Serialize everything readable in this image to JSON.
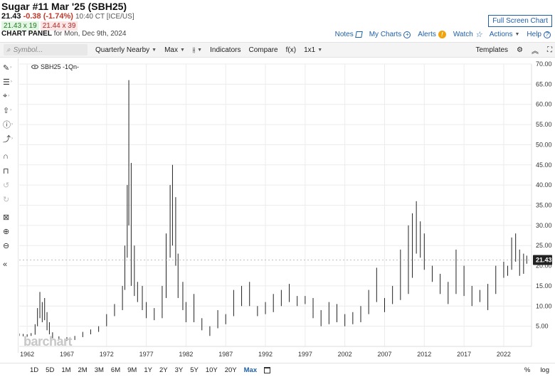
{
  "header": {
    "title": "Sugar #11 Mar '25 (SBH25)",
    "last": "21.43",
    "change": "-0.38 (-1.74%)",
    "time": "10:40 CT [ICE/US]",
    "bid": "21.43 x 19",
    "ask": "21.44 x 39",
    "panel_label": "CHART PANEL",
    "panel_date": "for Mon, Dec 9th, 2024",
    "fullscreen": "Full Screen Chart"
  },
  "links": {
    "notes": "Notes",
    "mycharts": "My Charts",
    "alerts": "Alerts",
    "watch": "Watch",
    "actions": "Actions",
    "help": "Help"
  },
  "toolbar": {
    "symbol_placeholder": "Symbol...",
    "aggregation": "Quarterly Nearby",
    "range": "Max",
    "indicators": "Indicators",
    "compare": "Compare",
    "fx": "f(x)",
    "layout": "1x1",
    "templates": "Templates"
  },
  "left_tools": [
    "pencil-icon",
    "lines-icon",
    "crosshair-icon",
    "arrow-up-icon",
    "info-icon",
    "path-icon",
    "magnet-icon",
    "lock-icon",
    "undo-icon",
    "redo-icon",
    "trash-icon",
    "zoom-in-icon",
    "zoom-out-icon",
    "collapse-icon"
  ],
  "legend": {
    "label": "SBH25 -1Qn-"
  },
  "watermark": "barchart",
  "bottom": {
    "periods": [
      "1D",
      "5D",
      "1M",
      "2M",
      "3M",
      "6M",
      "9M",
      "1Y",
      "2Y",
      "3Y",
      "5Y",
      "10Y",
      "20Y",
      "Max"
    ],
    "active": "Max",
    "percent": "%",
    "log": "log"
  },
  "chart_data": {
    "type": "ohlc",
    "symbol": "SBH25",
    "x_ticks": [
      "1962",
      "1967",
      "1972",
      "1977",
      "1982",
      "1987",
      "1992",
      "1997",
      "2002",
      "2007",
      "2012",
      "2017",
      "2022"
    ],
    "y_ticks": [
      "5.00",
      "10.00",
      "15.00",
      "20.00",
      "25.00",
      "30.00",
      "35.00",
      "40.00",
      "45.00",
      "50.00",
      "55.00",
      "60.00",
      "65.00",
      "70.00"
    ],
    "ylim": [
      0,
      70
    ],
    "xlim": [
      1961,
      2025.5
    ],
    "last_price": 21.43,
    "last_price_label": "21.43",
    "grid": true,
    "bars": [
      {
        "t": 1961.0,
        "h": 3.2,
        "l": 2.6
      },
      {
        "t": 1961.5,
        "h": 3.1,
        "l": 2.5
      },
      {
        "t": 1962.0,
        "h": 3.0,
        "l": 2.4
      },
      {
        "t": 1962.5,
        "h": 3.3,
        "l": 2.6
      },
      {
        "t": 1963.0,
        "h": 5.5,
        "l": 2.9
      },
      {
        "t": 1963.3,
        "h": 9.5,
        "l": 5.0
      },
      {
        "t": 1963.6,
        "h": 13.5,
        "l": 7.0
      },
      {
        "t": 1963.9,
        "h": 11.0,
        "l": 6.0
      },
      {
        "t": 1964.2,
        "h": 12.0,
        "l": 6.5
      },
      {
        "t": 1964.5,
        "h": 8.5,
        "l": 4.0
      },
      {
        "t": 1964.8,
        "h": 6.0,
        "l": 3.0
      },
      {
        "t": 1965.2,
        "h": 3.5,
        "l": 2.0
      },
      {
        "t": 1966.0,
        "h": 2.5,
        "l": 1.6
      },
      {
        "t": 1967.0,
        "h": 2.3,
        "l": 1.4
      },
      {
        "t": 1968.0,
        "h": 2.6,
        "l": 1.6
      },
      {
        "t": 1969.0,
        "h": 3.6,
        "l": 2.3
      },
      {
        "t": 1970.0,
        "h": 4.2,
        "l": 3.0
      },
      {
        "t": 1971.0,
        "h": 5.0,
        "l": 3.6
      },
      {
        "t": 1972.0,
        "h": 8.0,
        "l": 5.0
      },
      {
        "t": 1973.0,
        "h": 10.5,
        "l": 7.5
      },
      {
        "t": 1974.0,
        "h": 15.0,
        "l": 9.0
      },
      {
        "t": 1974.3,
        "h": 25.0,
        "l": 14.0
      },
      {
        "t": 1974.6,
        "h": 40.0,
        "l": 22.0
      },
      {
        "t": 1974.8,
        "h": 66.0,
        "l": 30.0
      },
      {
        "t": 1975.1,
        "h": 45.5,
        "l": 15.0
      },
      {
        "t": 1975.5,
        "h": 25.0,
        "l": 12.5
      },
      {
        "t": 1975.9,
        "h": 16.0,
        "l": 11.0
      },
      {
        "t": 1976.5,
        "h": 15.0,
        "l": 9.0
      },
      {
        "t": 1977.0,
        "h": 11.0,
        "l": 7.0
      },
      {
        "t": 1978.0,
        "h": 9.5,
        "l": 6.5
      },
      {
        "t": 1979.0,
        "h": 15.0,
        "l": 7.0
      },
      {
        "t": 1979.5,
        "h": 28.0,
        "l": 12.0
      },
      {
        "t": 1980.0,
        "h": 40.0,
        "l": 22.0
      },
      {
        "t": 1980.3,
        "h": 45.0,
        "l": 25.0
      },
      {
        "t": 1980.7,
        "h": 37.0,
        "l": 20.0
      },
      {
        "t": 1981.0,
        "h": 23.0,
        "l": 12.0
      },
      {
        "t": 1981.6,
        "h": 16.0,
        "l": 9.0
      },
      {
        "t": 1982.0,
        "h": 11.0,
        "l": 6.0
      },
      {
        "t": 1983.0,
        "h": 13.0,
        "l": 6.0
      },
      {
        "t": 1984.0,
        "h": 7.0,
        "l": 4.0
      },
      {
        "t": 1985.0,
        "h": 5.0,
        "l": 2.6
      },
      {
        "t": 1986.0,
        "h": 9.0,
        "l": 4.5
      },
      {
        "t": 1987.0,
        "h": 8.0,
        "l": 5.5
      },
      {
        "t": 1988.0,
        "h": 14.0,
        "l": 7.5
      },
      {
        "t": 1989.0,
        "h": 15.0,
        "l": 10.0
      },
      {
        "t": 1990.0,
        "h": 16.0,
        "l": 10.0
      },
      {
        "t": 1991.0,
        "h": 10.0,
        "l": 7.5
      },
      {
        "t": 1992.0,
        "h": 11.0,
        "l": 8.0
      },
      {
        "t": 1993.0,
        "h": 13.0,
        "l": 8.5
      },
      {
        "t": 1994.0,
        "h": 14.0,
        "l": 10.0
      },
      {
        "t": 1995.0,
        "h": 15.5,
        "l": 11.0
      },
      {
        "t": 1996.0,
        "h": 12.5,
        "l": 10.0
      },
      {
        "t": 1997.0,
        "h": 12.5,
        "l": 10.5
      },
      {
        "t": 1998.0,
        "h": 12.0,
        "l": 7.0
      },
      {
        "t": 1999.0,
        "h": 9.0,
        "l": 5.0
      },
      {
        "t": 2000.0,
        "h": 11.0,
        "l": 5.5
      },
      {
        "t": 2001.0,
        "h": 10.5,
        "l": 6.0
      },
      {
        "t": 2002.0,
        "h": 8.0,
        "l": 5.0
      },
      {
        "t": 2003.0,
        "h": 8.5,
        "l": 5.5
      },
      {
        "t": 2004.0,
        "h": 10.0,
        "l": 6.0
      },
      {
        "t": 2005.0,
        "h": 14.0,
        "l": 8.0
      },
      {
        "t": 2006.0,
        "h": 19.5,
        "l": 11.0
      },
      {
        "t": 2007.0,
        "h": 12.0,
        "l": 8.5
      },
      {
        "t": 2008.0,
        "h": 15.0,
        "l": 10.5
      },
      {
        "t": 2009.0,
        "h": 24.0,
        "l": 11.5
      },
      {
        "t": 2010.0,
        "h": 30.0,
        "l": 13.0
      },
      {
        "t": 2010.5,
        "h": 33.0,
        "l": 17.0
      },
      {
        "t": 2011.0,
        "h": 36.0,
        "l": 23.0
      },
      {
        "t": 2011.5,
        "h": 31.0,
        "l": 22.0
      },
      {
        "t": 2012.0,
        "h": 28.0,
        "l": 19.0
      },
      {
        "t": 2013.0,
        "h": 20.0,
        "l": 16.0
      },
      {
        "t": 2014.0,
        "h": 18.0,
        "l": 13.0
      },
      {
        "t": 2015.0,
        "h": 16.0,
        "l": 10.5
      },
      {
        "t": 2016.0,
        "h": 24.0,
        "l": 13.0
      },
      {
        "t": 2017.0,
        "h": 20.0,
        "l": 12.5
      },
      {
        "t": 2018.0,
        "h": 15.0,
        "l": 10.0
      },
      {
        "t": 2019.0,
        "h": 14.0,
        "l": 11.0
      },
      {
        "t": 2020.0,
        "h": 15.5,
        "l": 9.0
      },
      {
        "t": 2021.0,
        "h": 20.0,
        "l": 13.0
      },
      {
        "t": 2022.0,
        "h": 21.0,
        "l": 17.0
      },
      {
        "t": 2022.5,
        "h": 20.0,
        "l": 17.5
      },
      {
        "t": 2023.0,
        "h": 27.0,
        "l": 19.0
      },
      {
        "t": 2023.5,
        "h": 28.0,
        "l": 21.0
      },
      {
        "t": 2024.0,
        "h": 24.0,
        "l": 17.5
      },
      {
        "t": 2024.5,
        "h": 23.0,
        "l": 18.0
      },
      {
        "t": 2024.9,
        "h": 22.5,
        "l": 20.5
      }
    ]
  }
}
